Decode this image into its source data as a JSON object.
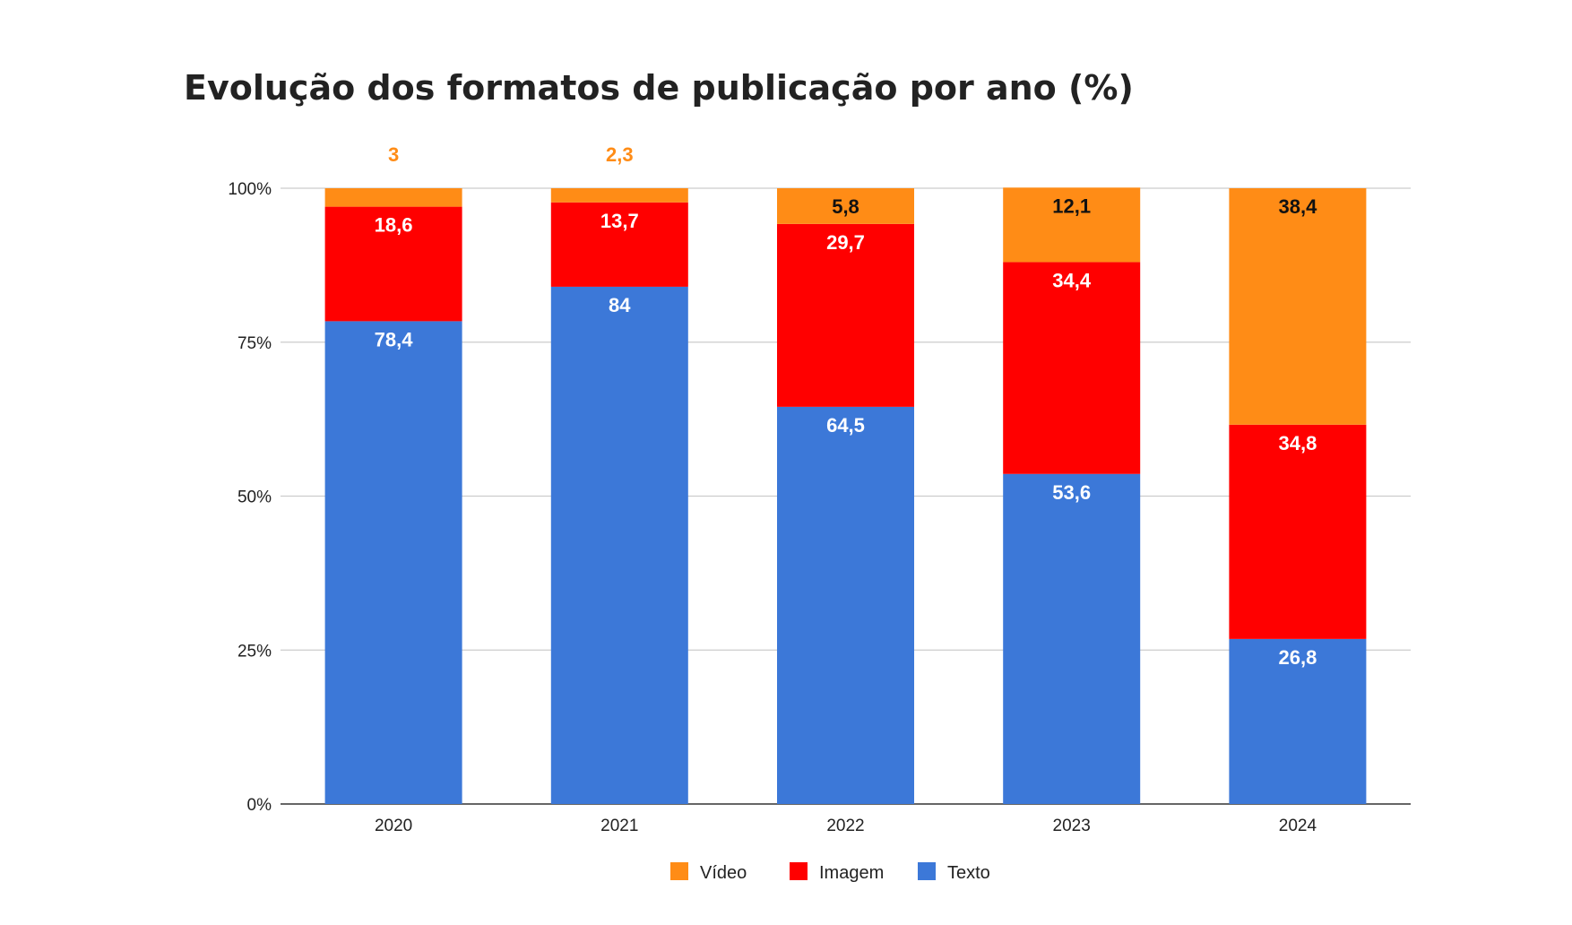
{
  "chart_data": {
    "type": "bar",
    "stacked": true,
    "title": "Evolução dos formatos de publicação por ano (%)",
    "xlabel": "",
    "ylabel": "",
    "categories": [
      "2020",
      "2021",
      "2022",
      "2023",
      "2024"
    ],
    "ylim": [
      0,
      100
    ],
    "yticks": [
      {
        "value": 0,
        "label": "0%"
      },
      {
        "value": 25,
        "label": "25%"
      },
      {
        "value": 50,
        "label": "50%"
      },
      {
        "value": 75,
        "label": "75%"
      },
      {
        "value": 100,
        "label": "100%"
      }
    ],
    "grid": true,
    "legend_position": "bottom-center",
    "series": [
      {
        "name": "Texto",
        "color": "#3c78d8",
        "values": [
          78.4,
          84,
          64.5,
          53.6,
          26.8
        ],
        "labels": [
          "78,4",
          "84",
          "64,5",
          "53,6",
          "26,8"
        ]
      },
      {
        "name": "Imagem",
        "color": "#ff0000",
        "values": [
          18.6,
          13.7,
          29.7,
          34.4,
          34.8
        ],
        "labels": [
          "18,6",
          "13,7",
          "29,7",
          "34,4",
          "34,8"
        ]
      },
      {
        "name": "Vídeo",
        "color": "#ff8c16",
        "values": [
          3,
          2.3,
          5.8,
          12.1,
          38.4
        ],
        "labels": [
          "3",
          "2,3",
          "5,8",
          "12,1",
          "38,4"
        ]
      }
    ],
    "legend_order": [
      "Vídeo",
      "Imagem",
      "Texto"
    ]
  }
}
